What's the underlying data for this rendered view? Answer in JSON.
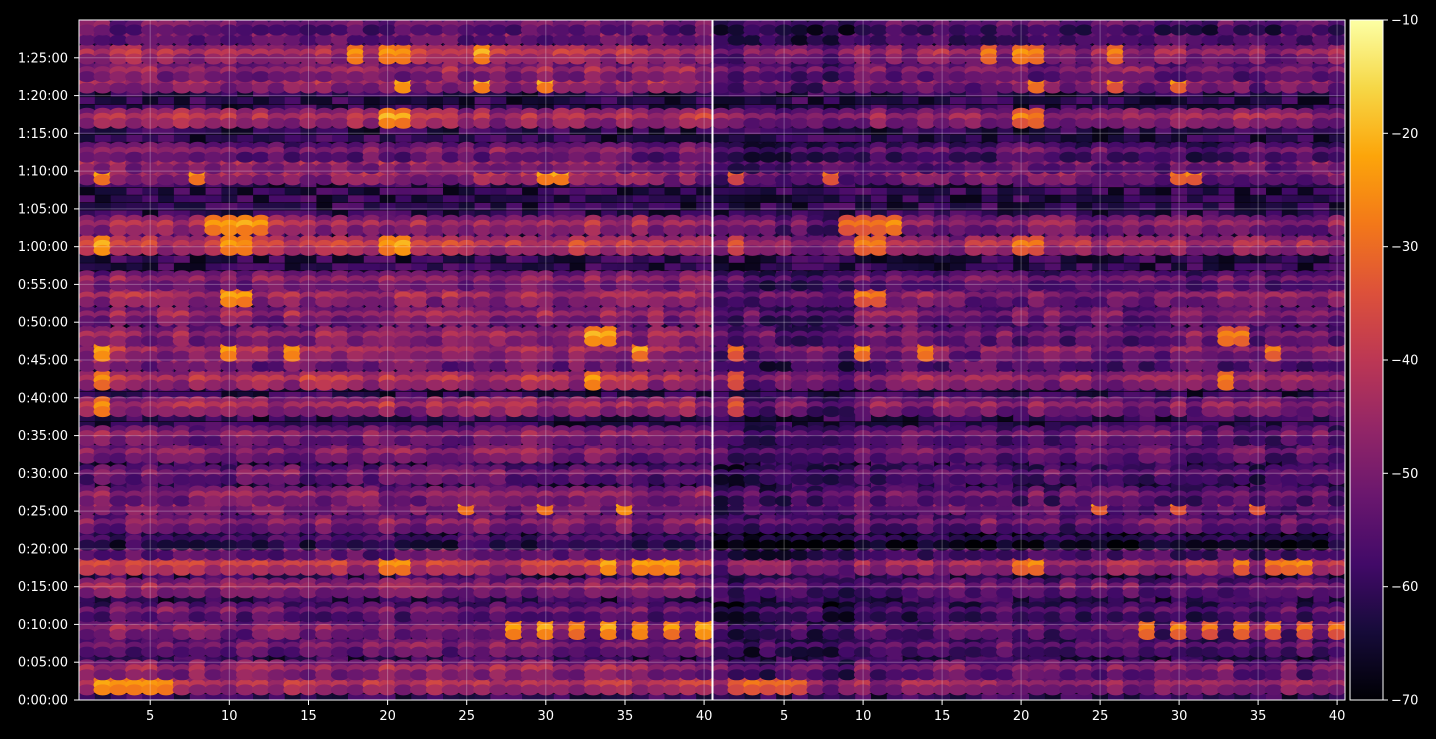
{
  "chart_data": {
    "type": "heatmap",
    "title": "",
    "xlabel": "",
    "ylabel": "",
    "colormap": "inferno",
    "background": "#000000",
    "grid": true,
    "panels": [
      {
        "name": "",
        "xlim": [
          1,
          40
        ],
        "x_ticks": [
          "5",
          "10",
          "15",
          "20",
          "25",
          "30",
          "35",
          "40"
        ]
      },
      {
        "name": "",
        "xlim": [
          1,
          40
        ],
        "x_ticks": [
          "5",
          "10",
          "15",
          "20",
          "25",
          "30",
          "35",
          "40"
        ]
      }
    ],
    "y_ticks": [
      "0:00:00",
      "0:05:00",
      "0:10:00",
      "0:15:00",
      "0:20:00",
      "0:25:00",
      "0:30:00",
      "0:35:00",
      "0:40:00",
      "0:45:00",
      "0:50:00",
      "0:55:00",
      "1:00:00",
      "1:05:00",
      "1:10:00",
      "1:15:00",
      "1:20:00",
      "1:25:00"
    ],
    "ylim_seconds": [
      0,
      5400
    ],
    "colorbar": {
      "min": -70,
      "max": -10,
      "ticks": [
        "−70",
        "−60",
        "−50",
        "−40",
        "−30",
        "−20",
        "−10"
      ]
    },
    "rows": [
      {
        "t": 120,
        "level": -40,
        "hot": [
          2,
          3,
          4,
          5,
          6
        ]
      },
      {
        "t": 240,
        "level": -44,
        "hot": []
      },
      {
        "t": 420,
        "level": -48,
        "hot": []
      },
      {
        "t": 560,
        "level": -46,
        "hot": [
          28,
          30,
          32,
          34,
          36,
          38,
          40
        ]
      },
      {
        "t": 700,
        "level": -50,
        "hot": []
      },
      {
        "t": 890,
        "level": -45,
        "hot": []
      },
      {
        "t": 1070,
        "level": -38,
        "hot": [
          20,
          21,
          34,
          36,
          37,
          38
        ]
      },
      {
        "t": 1190,
        "level": -48,
        "hot": []
      },
      {
        "t": 1270,
        "level": -56,
        "hot": []
      },
      {
        "t": 1400,
        "level": -46,
        "hot": []
      },
      {
        "t": 1550,
        "level": -44,
        "hot": [
          25,
          30,
          35
        ]
      },
      {
        "t": 1620,
        "level": -46,
        "hot": []
      },
      {
        "t": 1790,
        "level": -48,
        "hot": []
      },
      {
        "t": 1960,
        "level": -46,
        "hot": []
      },
      {
        "t": 2100,
        "level": -46,
        "hot": []
      },
      {
        "t": 2330,
        "level": -42,
        "hot": [
          2
        ]
      },
      {
        "t": 2540,
        "level": -40,
        "hot": [
          2,
          33
        ]
      },
      {
        "t": 2690,
        "level": -46,
        "hot": []
      },
      {
        "t": 2770,
        "level": -42,
        "hot": [
          2,
          10,
          14,
          36
        ]
      },
      {
        "t": 2890,
        "level": -44,
        "hot": [
          33,
          34
        ]
      },
      {
        "t": 3050,
        "level": -44,
        "hot": []
      },
      {
        "t": 3200,
        "level": -42,
        "hot": [
          10,
          11
        ]
      },
      {
        "t": 3330,
        "level": -46,
        "hot": []
      },
      {
        "t": 3610,
        "level": -38,
        "hot": [
          2,
          10,
          11,
          20,
          21
        ]
      },
      {
        "t": 3770,
        "level": -42,
        "hot": [
          9,
          10,
          11,
          12
        ]
      },
      {
        "t": 4170,
        "level": -42,
        "hot": [
          2,
          8,
          30,
          31
        ]
      },
      {
        "t": 4260,
        "level": -44,
        "hot": []
      },
      {
        "t": 4350,
        "level": -48,
        "hot": []
      },
      {
        "t": 4620,
        "level": -40,
        "hot": [
          20,
          21
        ]
      },
      {
        "t": 4900,
        "level": -42,
        "hot": [
          21,
          26,
          30
        ]
      },
      {
        "t": 4990,
        "level": -44,
        "hot": []
      },
      {
        "t": 5130,
        "level": -40,
        "hot": [
          18,
          20,
          21,
          26
        ]
      },
      {
        "t": 5280,
        "level": -48,
        "hot": []
      },
      {
        "t": 5360,
        "level": -50,
        "hot": []
      }
    ]
  }
}
